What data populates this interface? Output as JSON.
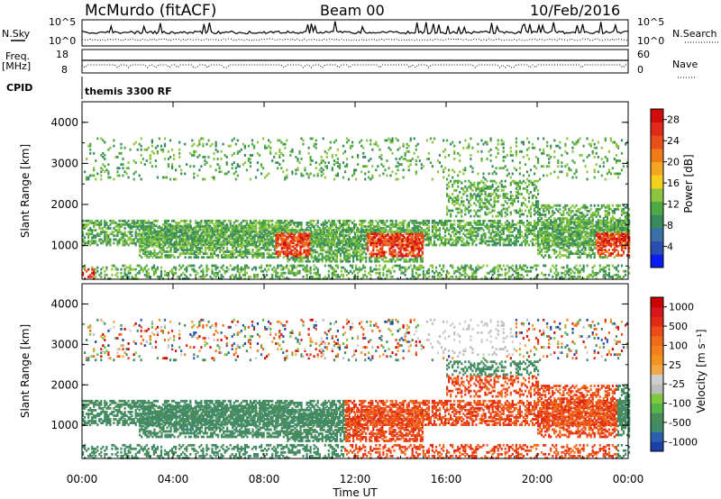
{
  "header": {
    "station": "McMurdo (fitACF)",
    "beam": "Beam 00",
    "date": "10/Feb/2016"
  },
  "status_panels": {
    "nsky_label": "N.Sky",
    "nsearch_label": "N.Search",
    "freq_label": "Freq.",
    "freq_unit": "[MHz]",
    "nave_label": "Nave",
    "cpid_label": "CPID",
    "cpid_value": "themis 3300 RF",
    "noise_left_ticks": [
      "10^5",
      "10^0"
    ],
    "noise_right_ticks": [
      "10^5",
      "10^0"
    ],
    "freq_left_ticks": [
      "18",
      "8"
    ],
    "nave_right_ticks": [
      "60",
      "0"
    ]
  },
  "chart_data": [
    {
      "type": "heatmap",
      "title": "",
      "xlabel": "Time UT",
      "ylabel": "Slant Range [km]",
      "x_ticks": [
        "00:00",
        "04:00",
        "08:00",
        "12:00",
        "16:00",
        "20:00",
        "00:00"
      ],
      "y_ticks": [
        "1000",
        "2000",
        "3000",
        "4000"
      ],
      "xlim_hours": [
        0,
        24
      ],
      "ylim_km": [
        180,
        4500
      ],
      "colorbar": {
        "label": "Power [dB]",
        "ticks": [
          "4",
          "8",
          "12",
          "16",
          "20",
          "24",
          "28"
        ],
        "range": [
          0,
          30
        ],
        "colors": [
          "#0a1cf0",
          "#2a4fb0",
          "#3b6fa8",
          "#3a8a60",
          "#4ea843",
          "#8cc63f",
          "#f2d21c",
          "#f5a623",
          "#f07b18",
          "#e8501a",
          "#e02a1a",
          "#d00c0c"
        ]
      }
    },
    {
      "type": "heatmap",
      "title": "",
      "xlabel": "Time UT",
      "ylabel": "Slant Range [km]",
      "x_ticks": [
        "00:00",
        "04:00",
        "08:00",
        "12:00",
        "16:00",
        "20:00",
        "00:00"
      ],
      "y_ticks": [
        "1000",
        "2000",
        "3000",
        "4000"
      ],
      "xlim_hours": [
        0,
        24
      ],
      "ylim_km": [
        180,
        4500
      ],
      "colorbar": {
        "label": "Velocity [m s⁻¹]",
        "ticks": [
          "1000",
          "500",
          "100",
          "25",
          "-25",
          "-100",
          "-500",
          "-1000"
        ],
        "colors": [
          "#1f3fa8",
          "#2b5fb0",
          "#3e8a6a",
          "#4a8c5a",
          "#58b548",
          "#7ec93f",
          "#bdbdbd",
          "#cfcfcf",
          "#f3a847",
          "#f49420",
          "#f27e1c",
          "#ef6a1a",
          "#ec4a1a",
          "#e02a14",
          "#d8151a",
          "#cc0000"
        ]
      }
    }
  ]
}
